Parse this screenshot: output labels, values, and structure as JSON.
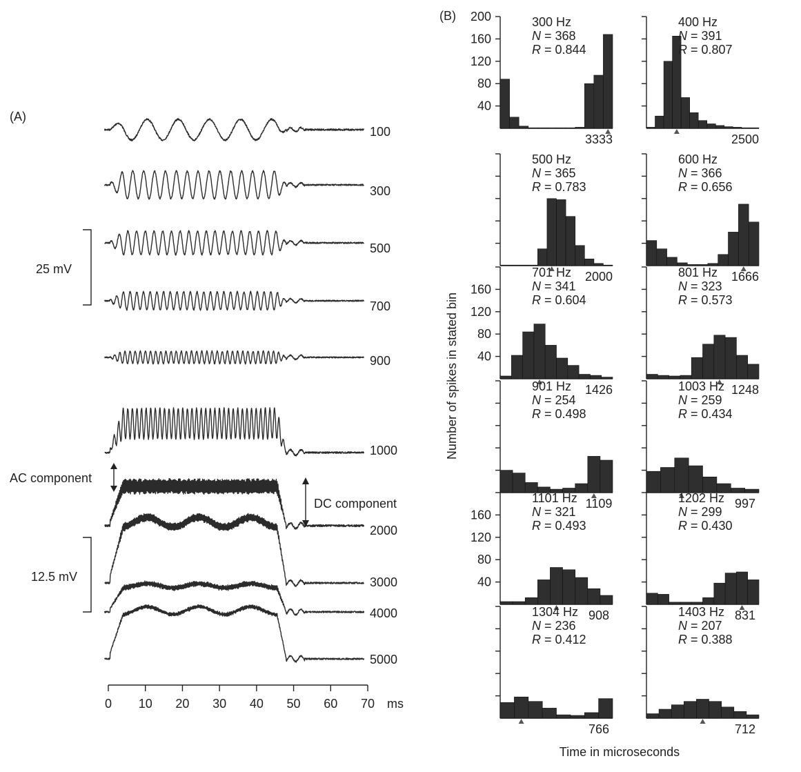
{
  "panel_a": {
    "label": "(A)",
    "scale_25": "25 mV",
    "scale_125": "12.5 mV",
    "ac_label": "AC component",
    "dc_label": "DC component",
    "time_unit": "ms"
  },
  "panel_b": {
    "label": "(B)",
    "ylabel": "Number of spikes in stated bin",
    "xlabel": "Time in microseconds"
  },
  "colors": {
    "bars": "#2f2f2f",
    "trace": "#2b2b2b"
  },
  "chart_data": [
    {
      "type": "line",
      "id": "waveforms",
      "x_ticks": [
        "0",
        "10",
        "20",
        "30",
        "40",
        "50",
        "60",
        "70"
      ],
      "xlim": [
        0,
        70
      ],
      "xlabel": "ms",
      "stimulus_on_ms": [
        0,
        47
      ],
      "series": [
        {
          "name": "100",
          "freq_hz": 100
        },
        {
          "name": "300",
          "freq_hz": 300
        },
        {
          "name": "500",
          "freq_hz": 500
        },
        {
          "name": "700",
          "freq_hz": 700
        },
        {
          "name": "900",
          "freq_hz": 900
        },
        {
          "name": "1000",
          "freq_hz": 1000
        },
        {
          "name": "2000",
          "freq_hz": 2000
        },
        {
          "name": "3000",
          "freq_hz": 3000
        },
        {
          "name": "4000",
          "freq_hz": 4000
        },
        {
          "name": "5000",
          "freq_hz": 5000
        }
      ]
    },
    {
      "type": "bar",
      "id": "histograms",
      "ylabel": "Number of spikes in stated bin",
      "xlabel": "Time in microseconds",
      "ylim": [
        0,
        200
      ],
      "panels": [
        {
          "freq": "300 Hz",
          "n": "368",
          "r": "0.844",
          "period": "3333",
          "yticks": [
            "200",
            "160",
            "120",
            "80",
            "40"
          ],
          "values": [
            88,
            20,
            4,
            1,
            1,
            1,
            1,
            1,
            2,
            80,
            95,
            168
          ]
        },
        {
          "freq": "400 Hz",
          "n": "391",
          "r": "0.807",
          "period": "2500",
          "yticks": [
            "",
            "",
            "",
            "",
            ""
          ],
          "values": [
            2,
            22,
            120,
            165,
            55,
            28,
            14,
            8,
            5,
            3,
            2,
            1,
            1
          ]
        },
        {
          "freq": "500 Hz",
          "n": "365",
          "r": "0.783",
          "period": "2000",
          "yticks": [],
          "values": [
            1,
            1,
            1,
            1,
            30,
            120,
            118,
            88,
            36,
            12,
            4,
            1
          ]
        },
        {
          "freq": "600 Hz",
          "n": "366",
          "r": "0.656",
          "period": "1666",
          "yticks": [],
          "values": [
            45,
            30,
            15,
            5,
            2,
            2,
            4,
            20,
            60,
            110,
            78
          ]
        },
        {
          "freq": "701 Hz",
          "n": "341",
          "r": "0.604",
          "period": "1426",
          "yticks": [
            "160",
            "120",
            "80",
            "40"
          ],
          "values": [
            5,
            42,
            84,
            98,
            60,
            37,
            24,
            8,
            6,
            3
          ]
        },
        {
          "freq": "801 Hz",
          "n": "323",
          "r": "0.573",
          "period": "1248",
          "yticks": [],
          "values": [
            8,
            6,
            5,
            6,
            38,
            62,
            78,
            74,
            42,
            26
          ]
        },
        {
          "freq": "901 Hz",
          "n": "254",
          "r": "0.498",
          "period": "1109",
          "yticks": [],
          "values": [
            40,
            35,
            18,
            10,
            6,
            8,
            16,
            65,
            58
          ]
        },
        {
          "freq": "1003 Hz",
          "n": "259",
          "r": "0.434",
          "period": "997",
          "yticks": [],
          "values": [
            38,
            45,
            62,
            48,
            28,
            16,
            8,
            6
          ]
        },
        {
          "freq": "1101 Hz",
          "n": "321",
          "r": "0.493",
          "period": "908",
          "yticks": [
            "160",
            "120",
            "80",
            "40"
          ],
          "values": [
            5,
            5,
            12,
            44,
            66,
            62,
            48,
            28,
            16
          ]
        },
        {
          "freq": "1202 Hz",
          "n": "299",
          "r": "0.430",
          "period": "831",
          "yticks": [],
          "values": [
            20,
            18,
            4,
            4,
            4,
            12,
            38,
            56,
            58,
            44
          ]
        },
        {
          "freq": "1304 Hz",
          "n": "236",
          "r": "0.412",
          "period": "766",
          "yticks": [],
          "values": [
            28,
            38,
            30,
            18,
            6,
            5,
            10,
            35
          ]
        },
        {
          "freq": "1403 Hz",
          "n": "207",
          "r": "0.388",
          "period": "712",
          "yticks": [],
          "values": [
            8,
            16,
            24,
            30,
            34,
            30,
            20,
            12,
            6
          ]
        }
      ]
    }
  ]
}
